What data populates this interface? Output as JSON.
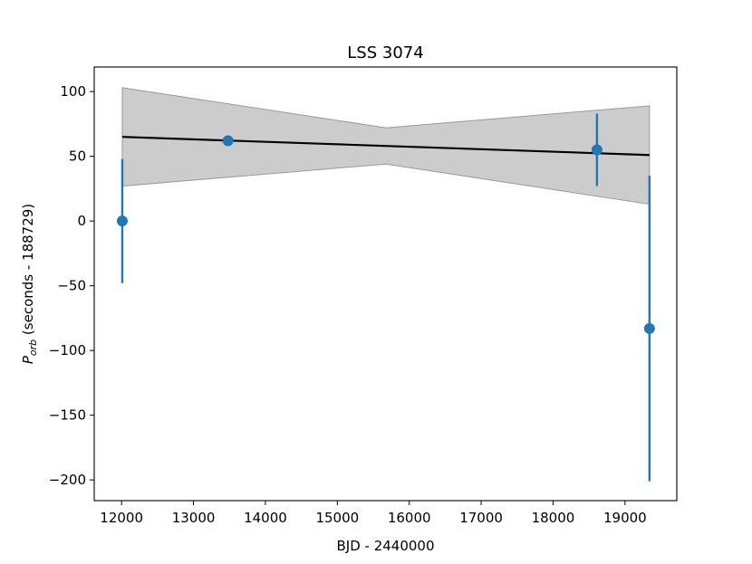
{
  "chart_data": {
    "type": "scatter",
    "title": "LSS 3074",
    "xlabel": "BJD - 2440000",
    "ylabel_main": "P",
    "ylabel_sub": "orb",
    "ylabel_rest": " (seconds - 188729)",
    "xlim": [
      11620,
      19720
    ],
    "ylim": [
      -216,
      119
    ],
    "xticks": [
      12000,
      13000,
      14000,
      15000,
      16000,
      17000,
      18000,
      19000
    ],
    "xtick_labels": [
      "12000",
      "13000",
      "14000",
      "15000",
      "16000",
      "17000",
      "18000",
      "19000"
    ],
    "yticks": [
      100,
      50,
      0,
      -50,
      -100,
      -150,
      -200
    ],
    "ytick_labels": [
      "100",
      "50",
      "0",
      "−50",
      "−100",
      "−150",
      "−200"
    ],
    "points": [
      {
        "x": 12010,
        "y": 0,
        "yerr": 48
      },
      {
        "x": 13480,
        "y": 62,
        "yerr": 0
      },
      {
        "x": 18610,
        "y": 55,
        "yerr": 28
      },
      {
        "x": 19340,
        "y": -83,
        "yerr": 118
      }
    ],
    "fit_line": {
      "x": [
        12010,
        19340
      ],
      "y": [
        65,
        51
      ]
    },
    "confidence_band": {
      "x": [
        12010,
        15680,
        19340
      ],
      "upper": [
        103,
        72,
        89
      ],
      "lower": [
        27,
        44,
        13
      ]
    },
    "colors": {
      "points": "#1f77b4",
      "fit_line": "#000000",
      "band_fill": "#cccccc",
      "band_edge": "#999999"
    },
    "grid": false
  }
}
